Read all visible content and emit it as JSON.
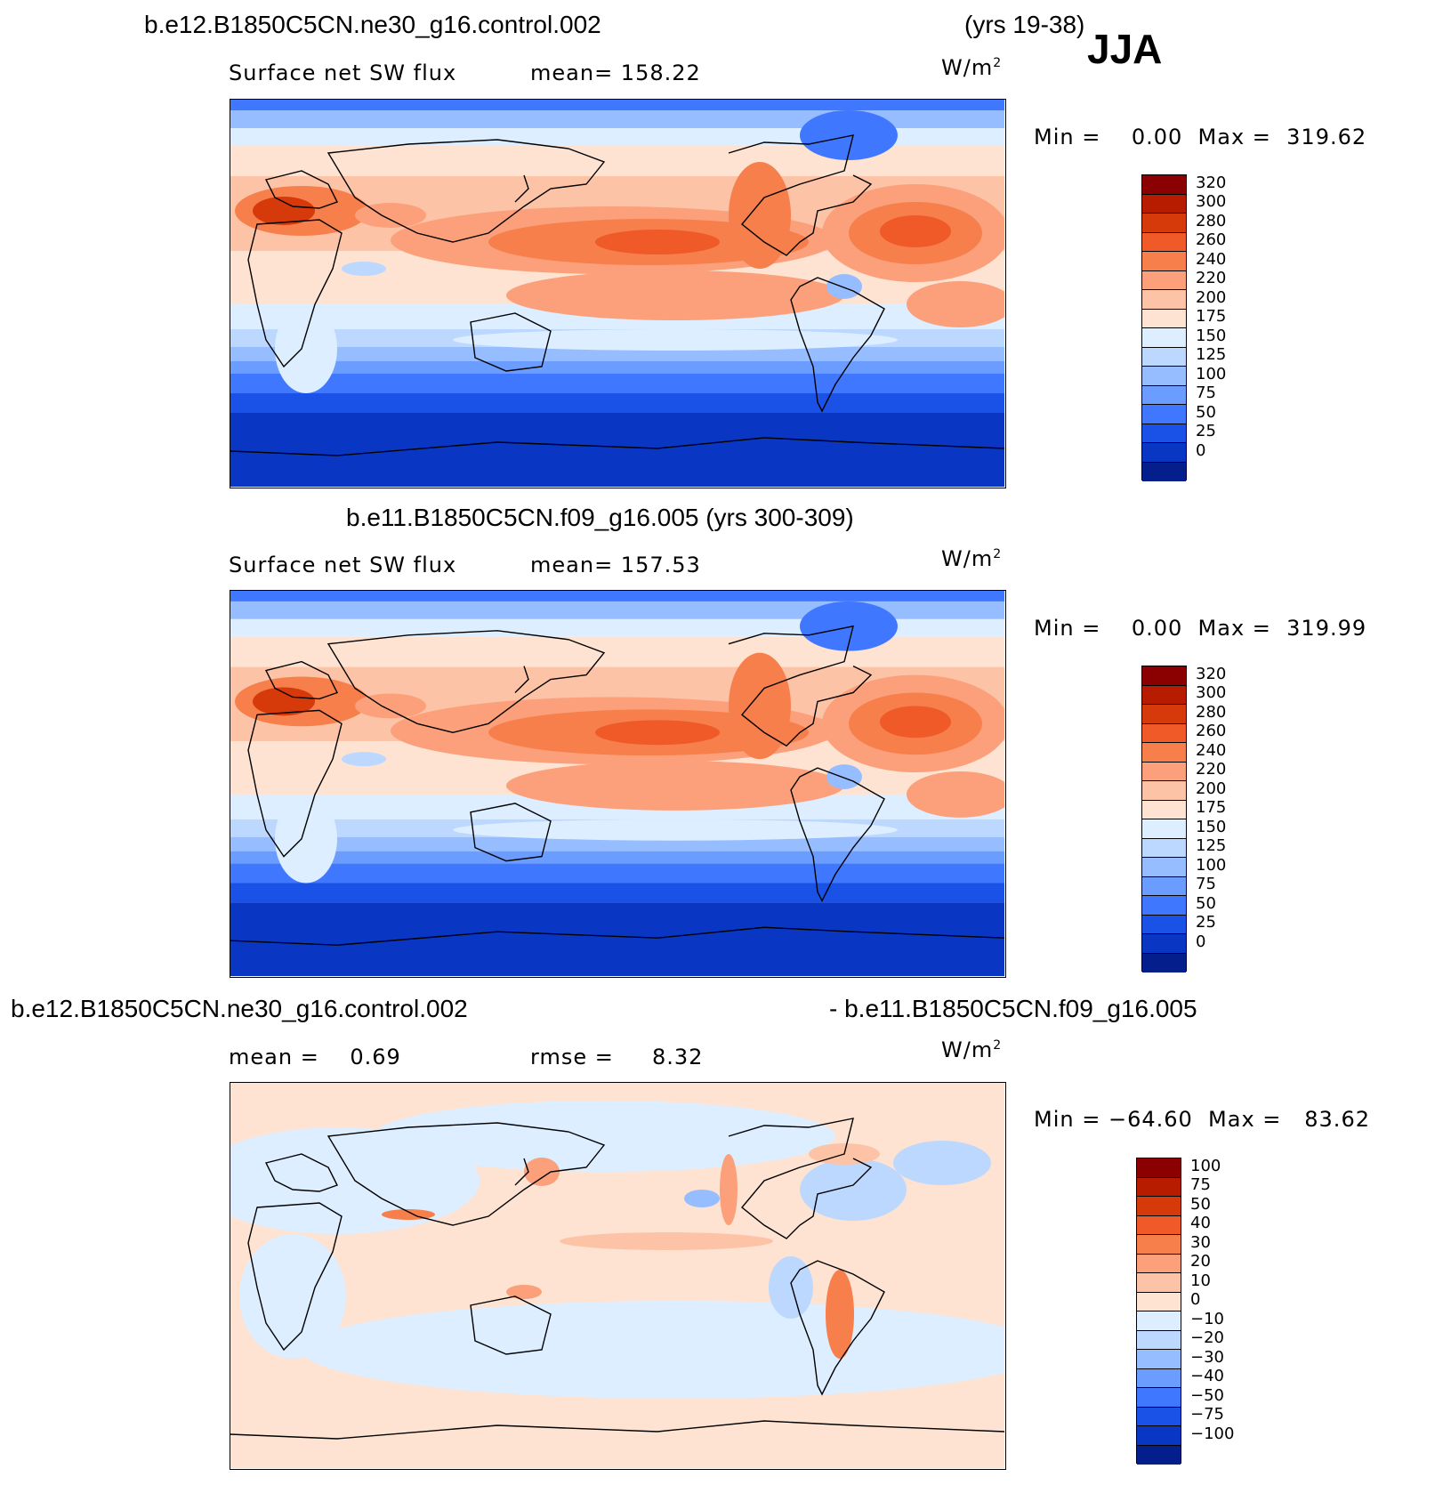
{
  "season": "JJA",
  "panels": [
    {
      "title_left": "b.e12.B1850C5CN.ne30_g16.control.002",
      "title_right": "(yrs 19-38)",
      "stat_left": "Surface net SW flux",
      "stat_mid": "mean=  158.22",
      "units": "W/m",
      "units_sup": "2",
      "minmax": "Min =    0.00  Max =  319.62",
      "field": "sw",
      "colorbar": {
        "labels": [
          "320",
          "300",
          "280",
          "260",
          "240",
          "220",
          "200",
          "175",
          "150",
          "125",
          "100",
          "75",
          "50",
          "25",
          "0"
        ],
        "colors": [
          "#8b0000",
          "#b71c00",
          "#d63a0a",
          "#ef5a28",
          "#f77f4c",
          "#fba07a",
          "#fdc3a6",
          "#fee3d2",
          "#dceeff",
          "#bcd8ff",
          "#96bdff",
          "#6b9cff",
          "#3f78ff",
          "#1a52e8",
          "#0a36c4",
          "#041f8c"
        ]
      }
    },
    {
      "title_left": "b.e11.B1850C5CN.f09_g16.005 (yrs 300-309)",
      "title_right": "",
      "stat_left": "Surface net SW flux",
      "stat_mid": "mean=  157.53",
      "units": "W/m",
      "units_sup": "2",
      "minmax": "Min =    0.00  Max =  319.99",
      "field": "sw",
      "colorbar": {
        "labels": [
          "320",
          "300",
          "280",
          "260",
          "240",
          "220",
          "200",
          "175",
          "150",
          "125",
          "100",
          "75",
          "50",
          "25",
          "0"
        ],
        "colors": [
          "#8b0000",
          "#b71c00",
          "#d63a0a",
          "#ef5a28",
          "#f77f4c",
          "#fba07a",
          "#fdc3a6",
          "#fee3d2",
          "#dceeff",
          "#bcd8ff",
          "#96bdff",
          "#6b9cff",
          "#3f78ff",
          "#1a52e8",
          "#0a36c4",
          "#041f8c"
        ]
      }
    },
    {
      "title_left": "b.e12.B1850C5CN.ne30_g16.control.002",
      "title_right": "- b.e11.B1850C5CN.f09_g16.005",
      "stat_left": "mean =    0.69",
      "stat_mid": "rmse =     8.32",
      "units": "W/m",
      "units_sup": "2",
      "minmax": "Min = −64.60  Max =   83.62",
      "field": "diff",
      "colorbar": {
        "labels": [
          "100",
          "75",
          "50",
          "40",
          "30",
          "20",
          "10",
          "0",
          "−10",
          "−20",
          "−30",
          "−40",
          "−50",
          "−75",
          "−100"
        ],
        "colors": [
          "#8b0000",
          "#b71c00",
          "#d63a0a",
          "#ef5a28",
          "#f77f4c",
          "#fba07a",
          "#fdc3a6",
          "#fee3d2",
          "#dceeff",
          "#bcd8ff",
          "#96bdff",
          "#6b9cff",
          "#3f78ff",
          "#1a52e8",
          "#0a36c4",
          "#041f8c"
        ]
      }
    }
  ]
}
